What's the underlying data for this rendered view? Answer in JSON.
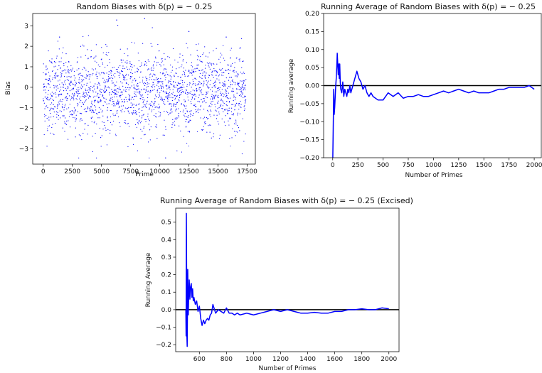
{
  "chart_data": [
    {
      "type": "scatter",
      "title": "Random Biases with δ(p) = − 0.25",
      "xlabel": "Prime",
      "ylabel": "Bias",
      "xlim": [
        -900,
        18200
      ],
      "ylim": [
        -3.75,
        3.6
      ],
      "xticks": [
        0,
        2500,
        5000,
        7500,
        10000,
        12500,
        15000,
        17500
      ],
      "yticks": [
        -3,
        -2,
        -1,
        0,
        1,
        2,
        3
      ],
      "color": "#0000ff",
      "grid": false,
      "points": {
        "count": 2000,
        "x_start": 2,
        "x_end": 17390,
        "mean": -0.25,
        "std": 1.0,
        "highlights": [
          {
            "x": 8700,
            "y": 3.35
          },
          {
            "x": 6300,
            "y": 3.28
          },
          {
            "x": 10500,
            "y": -3.45
          },
          {
            "x": 1400,
            "y": 2.45
          },
          {
            "x": 12500,
            "y": 2.72
          },
          {
            "x": 15700,
            "y": 2.45
          }
        ]
      }
    },
    {
      "type": "line",
      "title": "Running Average of Random Biases with δ(p) = − 0.25",
      "xlabel": "Number of Primes",
      "ylabel": "Running average",
      "xlim": [
        -90,
        2070
      ],
      "ylim": [
        -0.2,
        0.2
      ],
      "xticks": [
        0,
        250,
        500,
        750,
        1000,
        1250,
        1500,
        1750,
        2000
      ],
      "yticks": [
        -0.2,
        -0.15,
        -0.1,
        -0.05,
        0.0,
        0.05,
        0.1,
        0.15,
        0.2
      ],
      "tick_labels_y": [
        "−0.20",
        "−0.15",
        "−0.10",
        "−0.05",
        "0.00",
        "0.05",
        "0.10",
        "0.15",
        "0.20"
      ],
      "hline": 0,
      "color": "#0000ff",
      "series": [
        {
          "x": [
            1,
            5,
            10,
            15,
            20,
            25,
            30,
            35,
            40,
            45,
            50,
            55,
            60,
            65,
            70,
            75,
            80,
            90,
            100,
            110,
            120,
            130,
            140,
            150,
            160,
            170,
            180,
            200,
            220,
            240,
            250,
            260,
            280,
            300,
            320,
            340,
            360,
            380,
            400,
            450,
            500,
            550,
            600,
            650,
            700,
            750,
            800,
            850,
            900,
            950,
            1000,
            1050,
            1100,
            1150,
            1200,
            1250,
            1300,
            1350,
            1400,
            1450,
            1500,
            1550,
            1600,
            1650,
            1700,
            1750,
            1800,
            1850,
            1900,
            1950,
            2000
          ],
          "y": [
            -0.2,
            -0.12,
            -0.01,
            -0.08,
            -0.06,
            -0.03,
            0.0,
            0.02,
            0.05,
            0.09,
            0.06,
            0.03,
            0.06,
            0.02,
            0.06,
            0.01,
            -0.01,
            -0.02,
            0.01,
            -0.03,
            -0.01,
            -0.02,
            -0.03,
            -0.01,
            -0.02,
            0.0,
            -0.02,
            0.0,
            0.02,
            0.04,
            0.03,
            0.02,
            0.01,
            -0.01,
            0.0,
            -0.02,
            -0.03,
            -0.02,
            -0.03,
            -0.04,
            -0.04,
            -0.02,
            -0.03,
            -0.02,
            -0.035,
            -0.03,
            -0.03,
            -0.025,
            -0.03,
            -0.03,
            -0.025,
            -0.02,
            -0.015,
            -0.02,
            -0.015,
            -0.01,
            -0.015,
            -0.02,
            -0.015,
            -0.02,
            -0.02,
            -0.02,
            -0.015,
            -0.01,
            -0.01,
            -0.005,
            -0.005,
            -0.005,
            -0.005,
            -0.0,
            -0.01
          ]
        }
      ]
    },
    {
      "type": "line",
      "title": "Running Average of Random Biases with δ(p) = − 0.25 (Excised)",
      "xlabel": "Number of Primes",
      "ylabel": "Running Average",
      "xlim": [
        425,
        2075
      ],
      "ylim": [
        -0.24,
        0.58
      ],
      "xticks": [
        600,
        800,
        1000,
        1200,
        1400,
        1600,
        1800,
        2000
      ],
      "yticks": [
        -0.2,
        -0.1,
        0.0,
        0.1,
        0.2,
        0.3,
        0.4,
        0.5
      ],
      "tick_labels_y": [
        "−0.2",
        "−0.1",
        "0.0",
        "0.1",
        "0.2",
        "0.3",
        "0.4",
        "0.5"
      ],
      "hline": 0,
      "color": "#0000ff",
      "series": [
        {
          "x": [
            500,
            502,
            504,
            506,
            508,
            510,
            512,
            514,
            516,
            518,
            520,
            525,
            530,
            535,
            540,
            545,
            550,
            555,
            560,
            570,
            580,
            590,
            600,
            610,
            620,
            630,
            640,
            650,
            660,
            670,
            680,
            690,
            700,
            720,
            740,
            760,
            780,
            800,
            820,
            840,
            860,
            880,
            900,
            950,
            1000,
            1050,
            1100,
            1150,
            1200,
            1250,
            1300,
            1350,
            1400,
            1450,
            1500,
            1550,
            1600,
            1650,
            1700,
            1750,
            1800,
            1850,
            1900,
            1950,
            2000
          ],
          "y": [
            0.0,
            -0.15,
            0.55,
            0.2,
            -0.16,
            -0.21,
            0.0,
            0.23,
            0.1,
            -0.03,
            0.04,
            0.17,
            0.06,
            0.13,
            0.15,
            0.07,
            0.12,
            0.05,
            0.07,
            0.03,
            0.05,
            -0.01,
            0.02,
            -0.05,
            -0.09,
            -0.06,
            -0.08,
            -0.06,
            -0.05,
            -0.06,
            -0.03,
            -0.02,
            0.03,
            -0.02,
            0.0,
            -0.01,
            -0.02,
            0.01,
            -0.02,
            -0.02,
            -0.03,
            -0.02,
            -0.03,
            -0.02,
            -0.03,
            -0.02,
            -0.01,
            0.0,
            -0.01,
            0.0,
            -0.01,
            -0.02,
            -0.02,
            -0.015,
            -0.02,
            -0.02,
            -0.01,
            -0.01,
            0.0,
            0.0,
            0.005,
            0.0,
            0.0,
            0.01,
            0.005
          ]
        }
      ]
    }
  ]
}
